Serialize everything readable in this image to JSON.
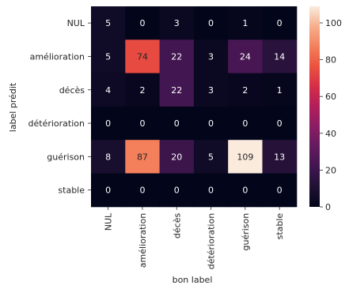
{
  "chart_data": {
    "type": "heatmap",
    "title": "",
    "xlabel": "bon label",
    "ylabel": "label prédit",
    "x_categories": [
      "NUL",
      "amélioration",
      "décès",
      "détérioration",
      "guérison",
      "stable"
    ],
    "y_categories": [
      "NUL",
      "amélioration",
      "décès",
      "détérioration",
      "guérison",
      "stable"
    ],
    "values": [
      [
        5,
        0,
        3,
        0,
        1,
        0
      ],
      [
        5,
        74,
        22,
        3,
        24,
        14
      ],
      [
        4,
        2,
        22,
        3,
        2,
        1
      ],
      [
        0,
        0,
        0,
        0,
        0,
        0
      ],
      [
        8,
        87,
        20,
        5,
        109,
        13
      ],
      [
        0,
        0,
        0,
        0,
        0,
        0
      ]
    ],
    "colorbar": {
      "min": 0,
      "max": 109,
      "ticks": [
        0,
        20,
        40,
        60,
        80,
        100
      ],
      "colormap": "rocket"
    }
  }
}
